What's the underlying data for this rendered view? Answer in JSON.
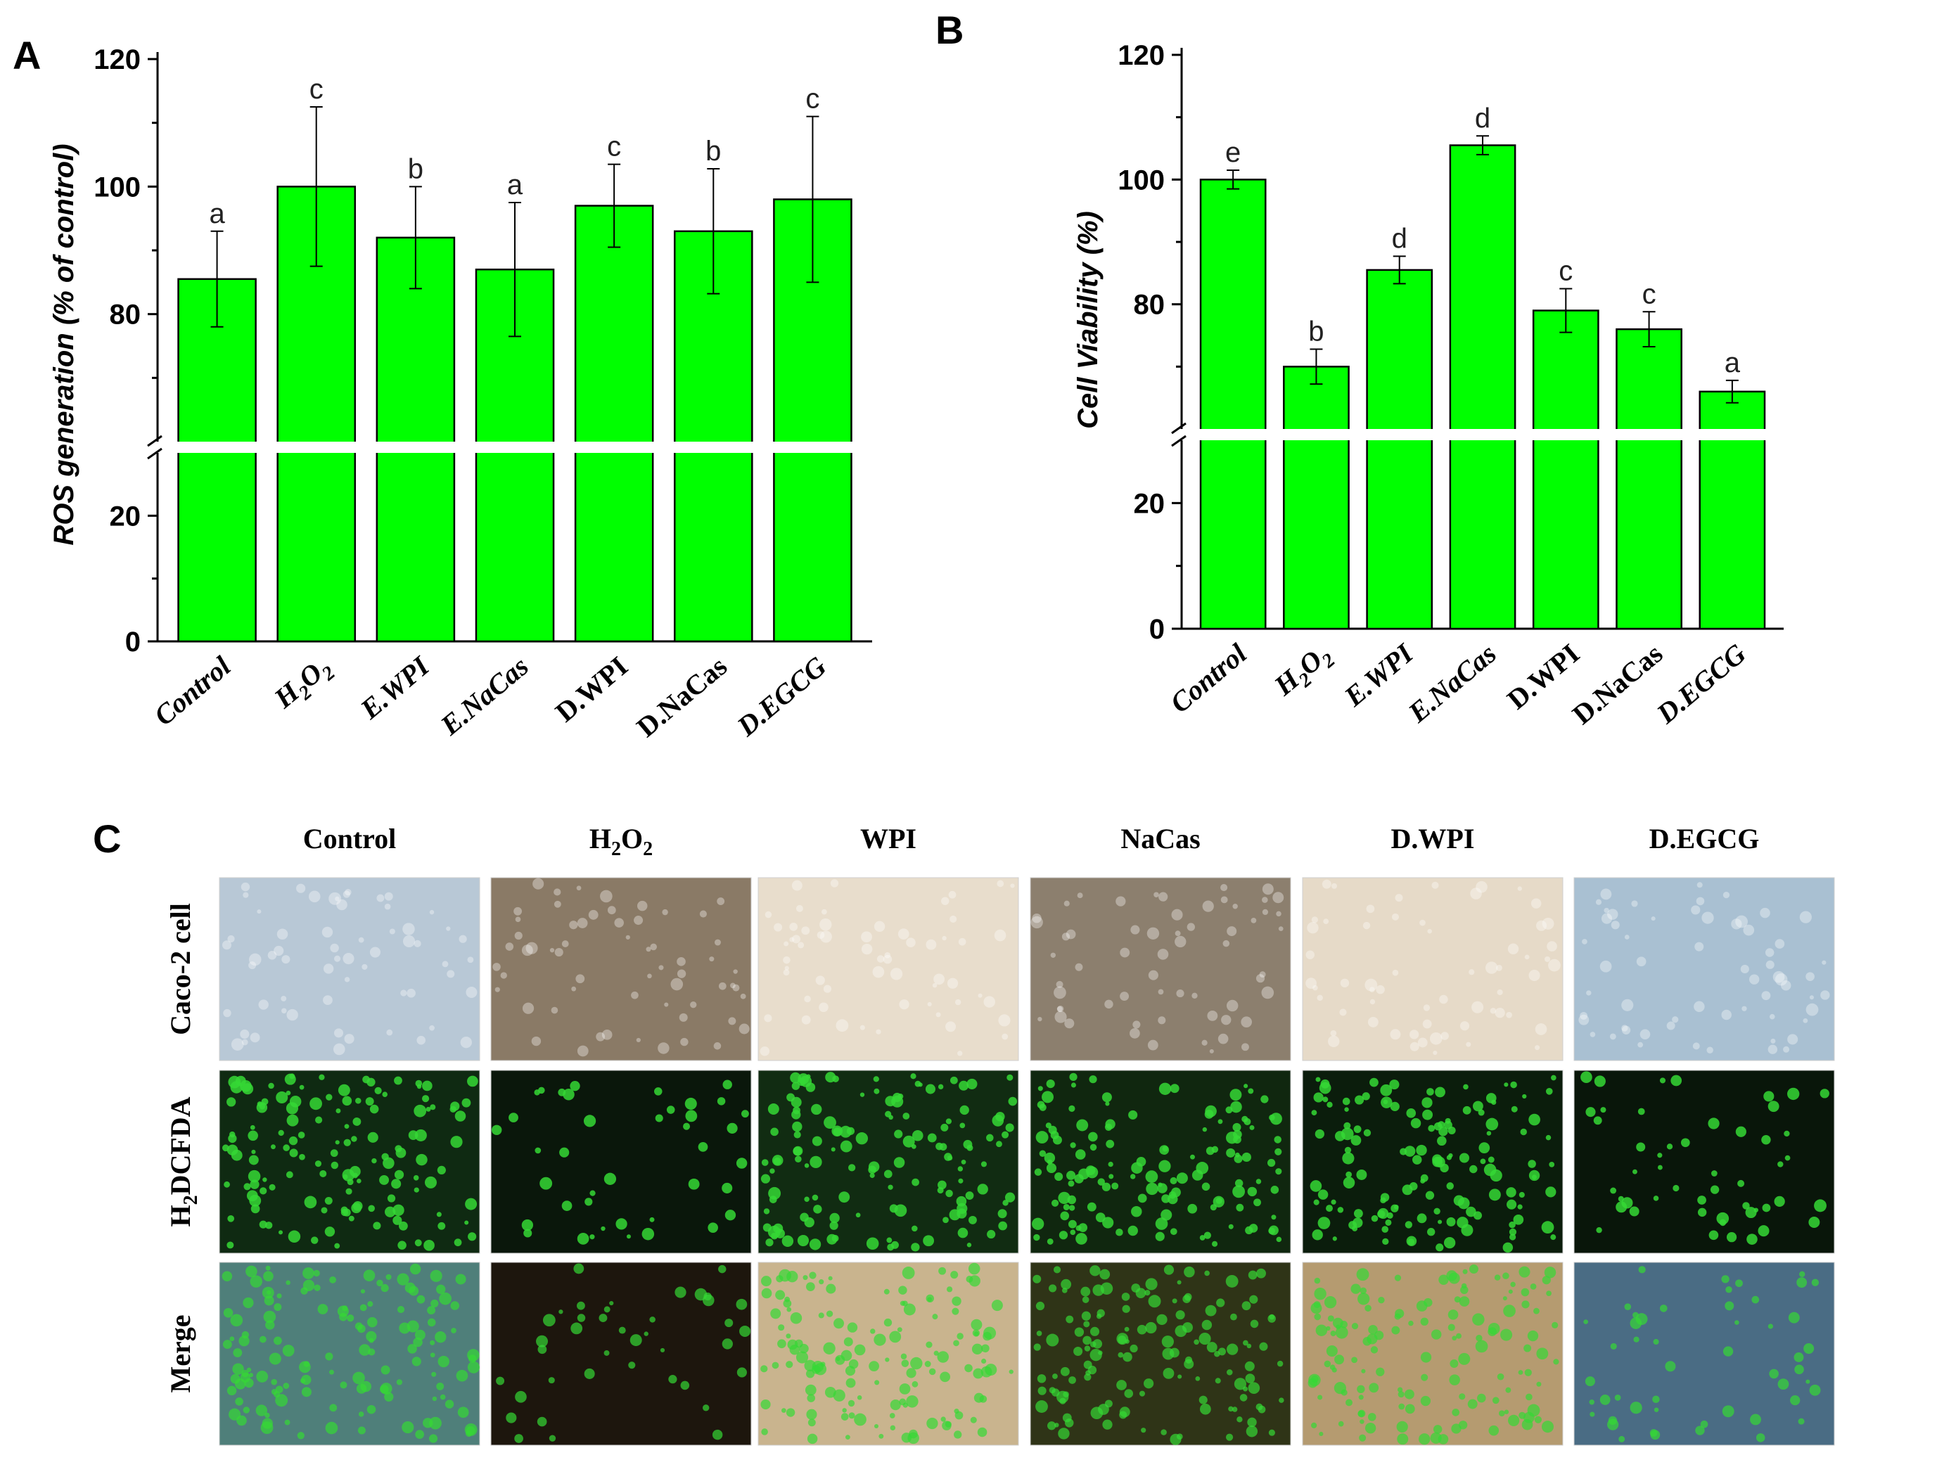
{
  "panel_labels": {
    "a": "A",
    "b": "B",
    "c": "C"
  },
  "colors": {
    "bar": "#00ff00",
    "bar_stroke": "#000000"
  },
  "chart_data": [
    {
      "panel": "A",
      "type": "bar",
      "ylabel": "ROS generation (% of control)",
      "categories": [
        "Control",
        "H2O2",
        "E.WPI",
        "E.NaCas",
        "D.WPI",
        "D.NaCas",
        "D.EGCG"
      ],
      "category_display": [
        {
          "main": "Control",
          "sub": "",
          "tail": "",
          "italic": true
        },
        {
          "main": "H",
          "sub": "2",
          "tail": "O2",
          "italic": true
        },
        {
          "main": "E.WPI",
          "sub": "",
          "tail": "",
          "italic": true
        },
        {
          "main": "E.NaCas",
          "sub": "",
          "tail": "",
          "italic": true
        },
        {
          "main": "D.WPI",
          "sub": "",
          "tail": "",
          "italic": false
        },
        {
          "main": "D.NaCas",
          "sub": "",
          "tail": "",
          "italic": false
        },
        {
          "main": "D.EGCG",
          "sub": "",
          "tail": "",
          "italic": true
        }
      ],
      "values": [
        85.5,
        100,
        92,
        87,
        97,
        93,
        98
      ],
      "errors": [
        7.5,
        12.5,
        8,
        10.5,
        6.5,
        9.8,
        13
      ],
      "significance": [
        "a",
        "c",
        "b",
        "a",
        "c",
        "b",
        "c"
      ],
      "axis_break": [
        30,
        60
      ],
      "lower_range": [
        0,
        30
      ],
      "upper_range": [
        60,
        120
      ],
      "yticks": [
        0,
        20,
        80,
        100,
        120
      ],
      "grid": false
    },
    {
      "panel": "B",
      "type": "bar",
      "ylabel": "Cell Viability (%)",
      "categories": [
        "Control",
        "H2O2",
        "E.WPI",
        "E.NaCas",
        "D.WPI",
        "D.NaCas",
        "D.EGCG"
      ],
      "category_display": [
        {
          "main": "Control",
          "sub": "",
          "tail": "",
          "italic": true
        },
        {
          "main": "H",
          "sub": "2",
          "tail": "O2",
          "italic": true
        },
        {
          "main": "E.WPI",
          "sub": "",
          "tail": "",
          "italic": true
        },
        {
          "main": "E.NaCas",
          "sub": "",
          "tail": "",
          "italic": true
        },
        {
          "main": "D.WPI",
          "sub": "",
          "tail": "",
          "italic": false
        },
        {
          "main": "D.NaCas",
          "sub": "",
          "tail": "",
          "italic": false
        },
        {
          "main": "D.EGCG",
          "sub": "",
          "tail": "",
          "italic": true
        }
      ],
      "values": [
        100,
        70,
        85.5,
        105.5,
        79,
        76,
        66
      ],
      "errors": [
        1.5,
        2.8,
        2.2,
        1.5,
        3.5,
        2.8,
        1.8
      ],
      "significance": [
        "e",
        "b",
        "d",
        "d",
        "c",
        "c",
        "a"
      ],
      "axis_break": [
        30,
        60
      ],
      "lower_range": [
        0,
        30
      ],
      "upper_range": [
        60,
        120
      ],
      "yticks": [
        0,
        20,
        80,
        100,
        120
      ],
      "grid": false
    }
  ],
  "micrographs": {
    "columns": [
      "Control",
      "H2O2",
      "WPI",
      "NaCas",
      "D.WPI",
      "D.EGCG"
    ],
    "column_display": [
      {
        "main": "Control",
        "sub": "",
        "tail": ""
      },
      {
        "main": "H",
        "sub": "2",
        "tail": "O2"
      },
      {
        "main": "WPI",
        "sub": "",
        "tail": ""
      },
      {
        "main": "NaCas",
        "sub": "",
        "tail": ""
      },
      {
        "main": "D.WPI",
        "sub": "",
        "tail": ""
      },
      {
        "main": "D.EGCG",
        "sub": "",
        "tail": ""
      }
    ],
    "rows": [
      "Caco-2 cell",
      "H2DCFDA",
      "Merge"
    ],
    "row_display": [
      {
        "main": "Caco-2  cell",
        "sub": "",
        "tail": ""
      },
      {
        "main": "H",
        "sub": "2",
        "tail": "DCFDA"
      },
      {
        "main": "Merge",
        "sub": "",
        "tail": ""
      }
    ],
    "tile_colors": [
      [
        "#b8c8d6",
        "#8a7a66",
        "#e8ddcc",
        "#8c7f6e",
        "#e6dac8",
        "#a9c0d2"
      ],
      [
        "#0f2a12",
        "#0a170b",
        "#112c12",
        "#10270f",
        "#0b1d0c",
        "#09160a"
      ],
      [
        "#4f7f7a",
        "#1d160d",
        "#c9b48e",
        "#2f3417",
        "#b59b70",
        "#4a6c84"
      ]
    ],
    "dot_color": "#35d835"
  }
}
